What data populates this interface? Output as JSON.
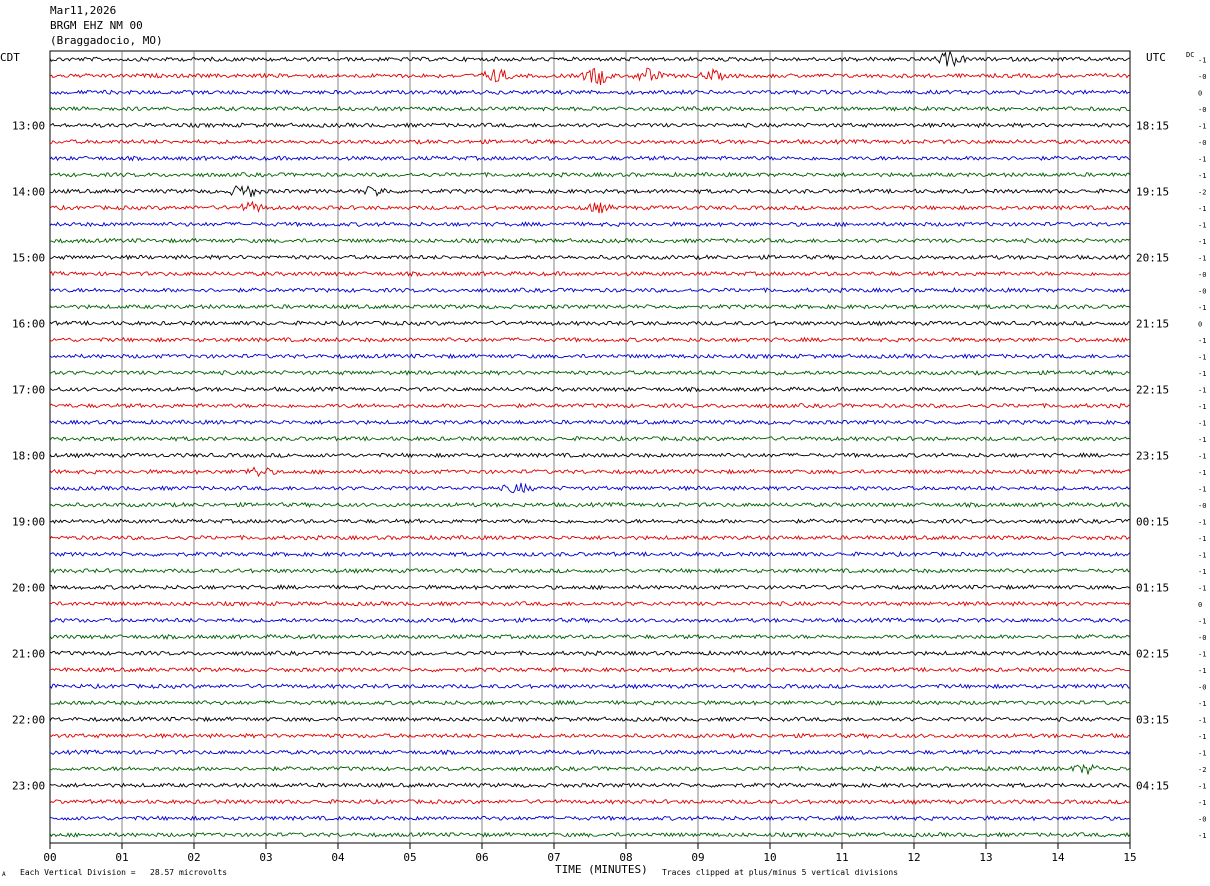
{
  "header": {
    "date": "Mar11,2026",
    "station": "BRGM EHZ NM 00",
    "location": "(Braggadocio, MO)"
  },
  "left_zone": "CDT",
  "right_zone": "UTC",
  "dc_label": "DC",
  "footer": {
    "scale_note": "Each Vertical Division =   28.57 microvolts",
    "clip_note": "Traces clipped at plus/minus 5 vertical divisions",
    "corner_mark": "A"
  },
  "colors": [
    "#000000",
    "#e00000",
    "#0000d0",
    "#006000"
  ],
  "chart_data": {
    "type": "line",
    "title": "",
    "xlabel": "TIME (MINUTES)",
    "xlim": [
      0,
      15
    ],
    "x_ticks": [
      "00",
      "01",
      "02",
      "03",
      "04",
      "05",
      "06",
      "07",
      "08",
      "09",
      "10",
      "11",
      "12",
      "13",
      "14",
      "15"
    ],
    "left_hour_labels": [
      "13:00",
      "14:00",
      "15:00",
      "16:00",
      "17:00",
      "18:00",
      "19:00",
      "20:00",
      "21:00",
      "22:00",
      "23:00"
    ],
    "right_hour_labels": [
      "18:15",
      "19:15",
      "20:15",
      "21:15",
      "22:15",
      "23:15",
      "00:15",
      "01:15",
      "02:15",
      "03:15",
      "04:15"
    ],
    "trace_count": 48,
    "dc_offsets": [
      "-1",
      "-0",
      "0",
      "-0",
      "-1",
      "-0",
      "-1",
      "-1",
      "-2",
      "-1",
      "-1",
      "-1",
      "-1",
      "-0",
      "-0",
      "-1",
      "0",
      "-1",
      "-1",
      "-1",
      "-1",
      "-1",
      "-1",
      "-1",
      "-1",
      "-1",
      "-1",
      "-0",
      "-1",
      "-1",
      "-1",
      "-1",
      "-1",
      "0",
      "-1",
      "-0",
      "-1",
      "-1",
      "-0",
      "-1",
      "-1",
      "-1",
      "-1",
      "-2",
      "-1",
      "-1",
      "-0",
      "-1"
    ],
    "events": [
      {
        "trace": 0,
        "minute": 12.5,
        "amplitude": 3
      },
      {
        "trace": 1,
        "minute": 6.2,
        "amplitude": 3
      },
      {
        "trace": 1,
        "minute": 7.6,
        "amplitude": 4
      },
      {
        "trace": 1,
        "minute": 8.3,
        "amplitude": 3
      },
      {
        "trace": 1,
        "minute": 9.2,
        "amplitude": 2
      },
      {
        "trace": 8,
        "minute": 2.7,
        "amplitude": 3
      },
      {
        "trace": 8,
        "minute": 4.5,
        "amplitude": 2
      },
      {
        "trace": 9,
        "minute": 2.8,
        "amplitude": 2
      },
      {
        "trace": 9,
        "minute": 7.6,
        "amplitude": 2
      },
      {
        "trace": 25,
        "minute": 2.9,
        "amplitude": 2
      },
      {
        "trace": 26,
        "minute": 6.5,
        "amplitude": 2
      },
      {
        "trace": 43,
        "minute": 14.4,
        "amplitude": 2
      }
    ]
  }
}
